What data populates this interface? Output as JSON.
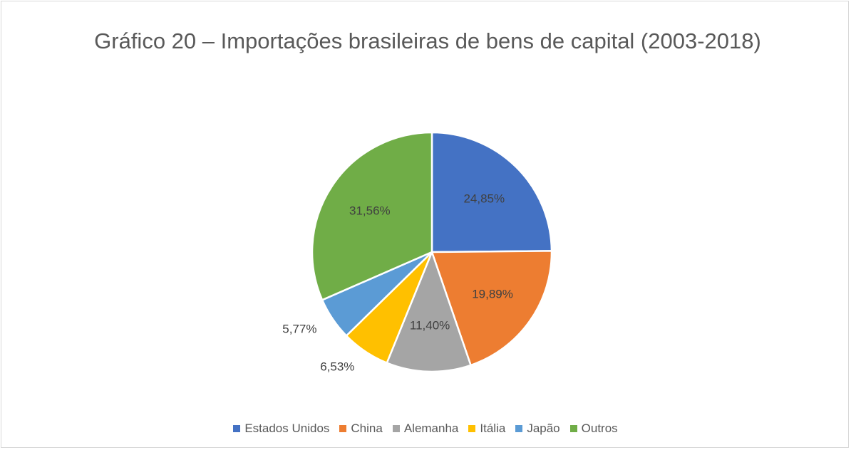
{
  "chart_data": {
    "type": "pie",
    "title": "Gráfico 20 – Importações brasileiras de bens de capital (2003-2018)",
    "categories": [
      "Estados Unidos",
      "China",
      "Alemanha",
      "Itália",
      "Japão",
      "Outros"
    ],
    "values": [
      24.85,
      19.89,
      11.4,
      6.53,
      5.77,
      31.56
    ],
    "value_labels": [
      "24,85%",
      "19,89%",
      "11,40%",
      "6,53%",
      "5,77%",
      "31,56%"
    ],
    "colors": [
      "#4472c4",
      "#ed7d31",
      "#a5a5a5",
      "#ffc000",
      "#5b9bd5",
      "#70ad47"
    ],
    "legend": "bottom"
  }
}
